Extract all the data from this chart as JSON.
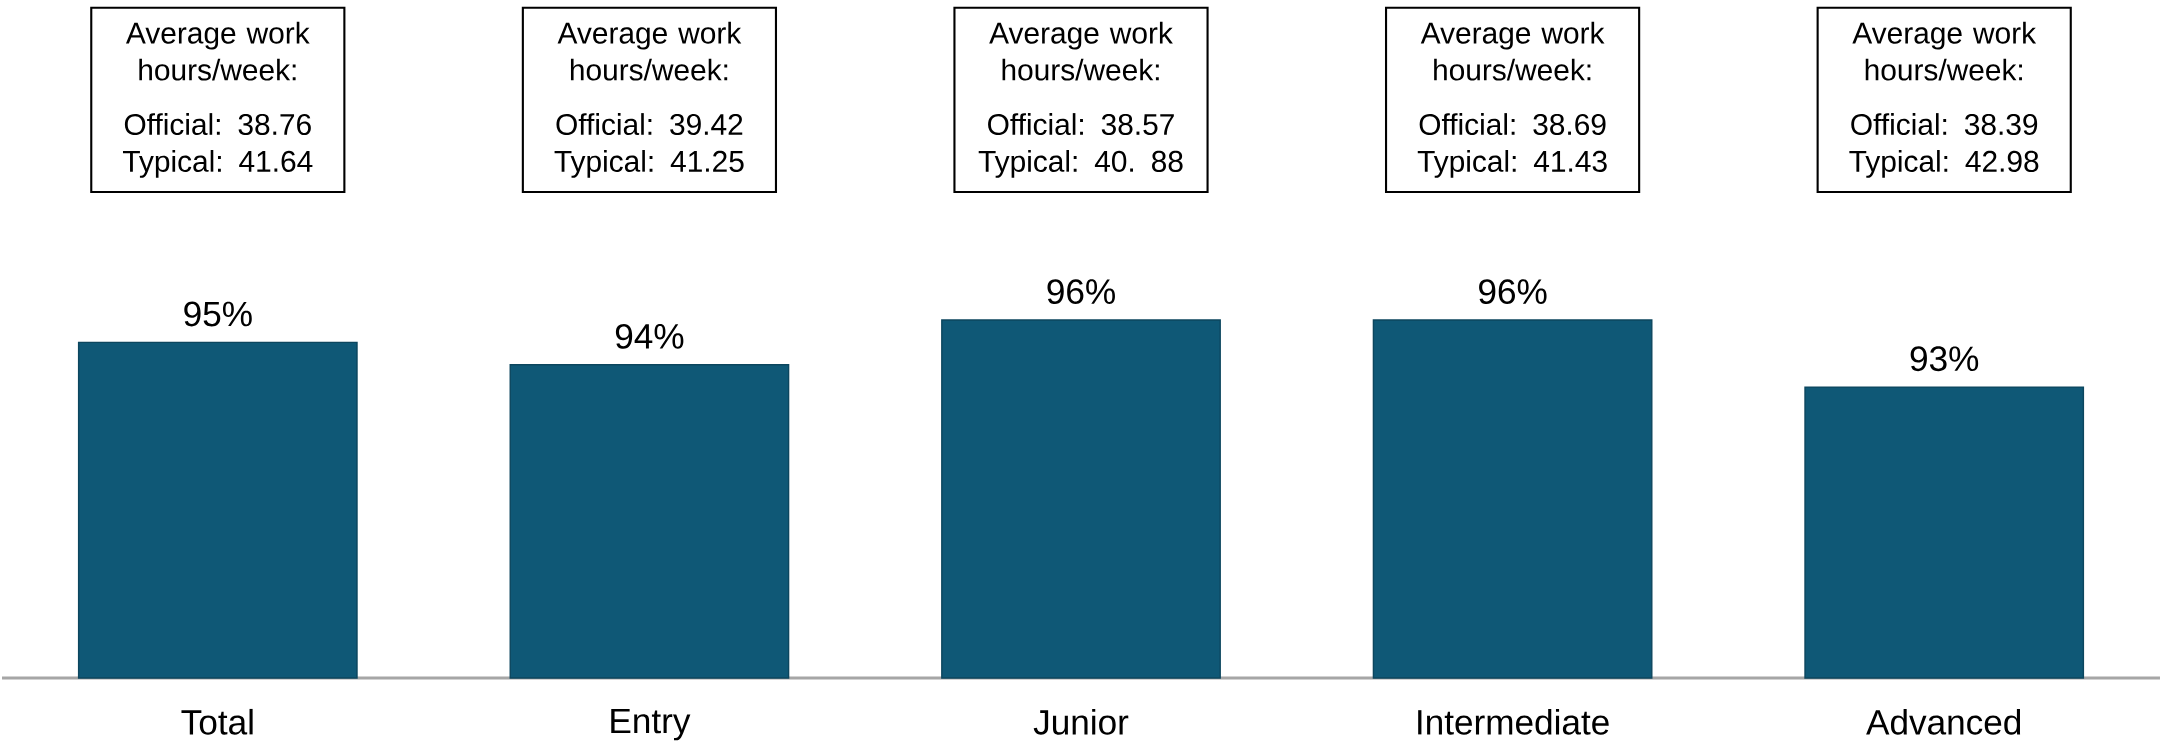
{
  "chart_data": {
    "type": "bar",
    "categories": [
      "Total",
      "Entry",
      "Junior",
      "Intermediate",
      "Advanced"
    ],
    "values": [
      95,
      94,
      96,
      96,
      93
    ],
    "value_labels": [
      "95%",
      "94%",
      "96%",
      "96%",
      "93%"
    ],
    "color": "#0f5876",
    "ylim": [
      80,
      96
    ],
    "tick_labels": "x",
    "annotations": [
      "Average work hours/week:",
      "Official: 38.76",
      "Typical: 41.64",
      "Average work hours/week:",
      "Official: 39.42",
      "Typical: 41.25",
      "Average work hours/week:",
      "Official: 38.57",
      "Typical: 40. 88",
      "Average work hours/week:",
      "Official: 38.69",
      "Typical: 41.43",
      "Average work hours/week:",
      "Official: 38.39",
      "Typical: 42.98"
    ]
  }
}
